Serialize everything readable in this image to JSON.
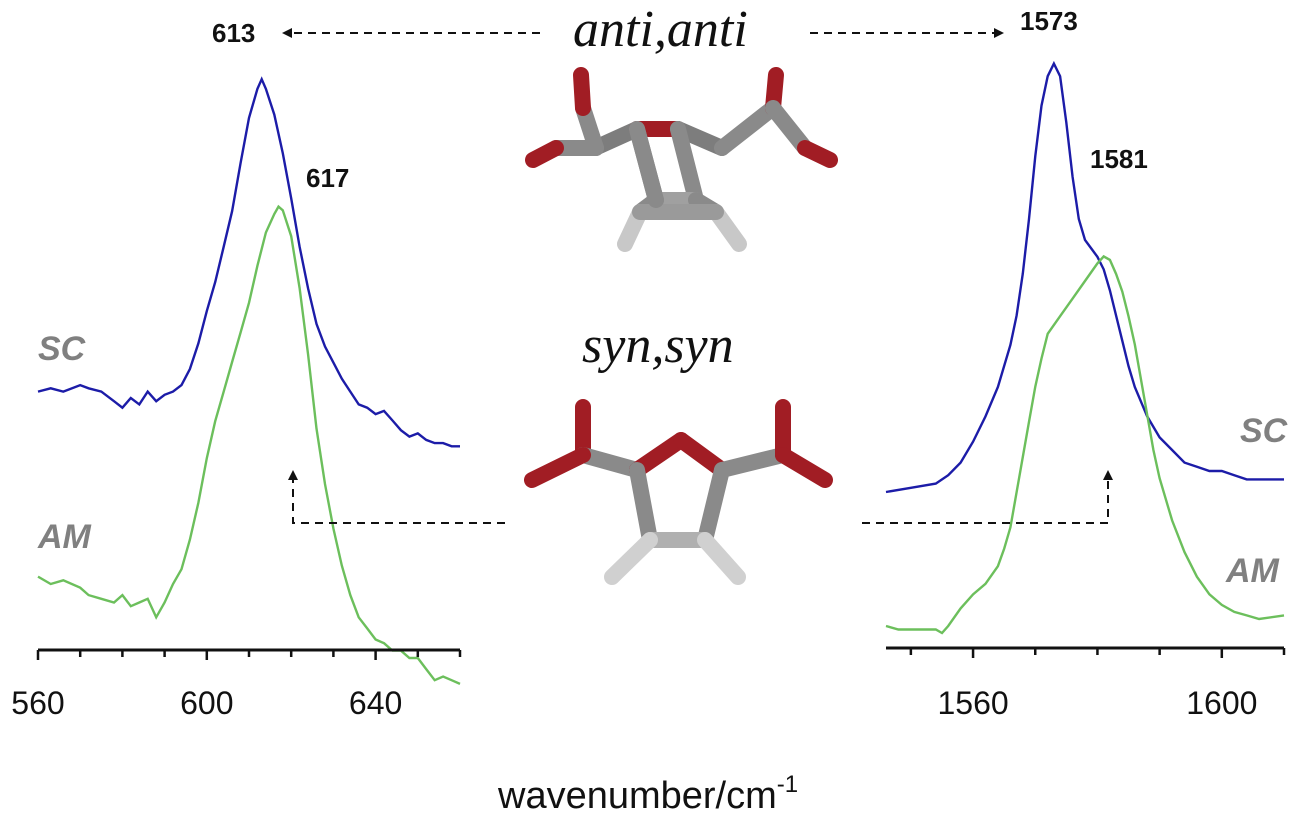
{
  "chart_data": [
    {
      "type": "line",
      "panel": "left",
      "xlim": [
        560,
        660
      ],
      "x_ticks": [
        560,
        600,
        640
      ],
      "x_tick_labels": [
        "560",
        "600",
        "640"
      ],
      "colors": {
        "SC": "#1c1ca8",
        "AM": "#6cbf5c"
      },
      "series": [
        {
          "name": "SC",
          "x": [
            560,
            563,
            566,
            570,
            572,
            575,
            578,
            580,
            582,
            584,
            586,
            588,
            590,
            592,
            594,
            596,
            598,
            599,
            600,
            602,
            604,
            606,
            608,
            610,
            612,
            613,
            614,
            616,
            618,
            620,
            622,
            624,
            626,
            628,
            630,
            632,
            634,
            636,
            638,
            640,
            642,
            644,
            646,
            648,
            650,
            652,
            654,
            656,
            658,
            660
          ],
          "y": [
            0.02,
            0.03,
            0.02,
            0.04,
            0.03,
            0.02,
            -0.01,
            -0.03,
            0.0,
            -0.02,
            0.02,
            -0.01,
            0.01,
            0.02,
            0.04,
            0.09,
            0.17,
            0.22,
            0.27,
            0.36,
            0.47,
            0.58,
            0.73,
            0.87,
            0.96,
            0.99,
            0.96,
            0.88,
            0.76,
            0.62,
            0.47,
            0.34,
            0.23,
            0.16,
            0.11,
            0.06,
            0.02,
            -0.02,
            -0.03,
            -0.05,
            -0.04,
            -0.07,
            -0.1,
            -0.12,
            -0.11,
            -0.13,
            -0.14,
            -0.14,
            -0.15,
            -0.15
          ]
        },
        {
          "name": "AM",
          "x": [
            560,
            563,
            566,
            570,
            572,
            575,
            578,
            580,
            582,
            584,
            586,
            588,
            590,
            592,
            594,
            596,
            598,
            600,
            602,
            604,
            606,
            608,
            610,
            612,
            614,
            616,
            617,
            618,
            620,
            622,
            624,
            626,
            628,
            630,
            632,
            634,
            636,
            638,
            640,
            642,
            644,
            646,
            648,
            650,
            652,
            654,
            656,
            658,
            660
          ],
          "y": [
            0.02,
            0.0,
            0.01,
            -0.01,
            -0.03,
            -0.04,
            -0.05,
            -0.03,
            -0.06,
            -0.05,
            -0.04,
            -0.09,
            -0.05,
            0.0,
            0.04,
            0.12,
            0.22,
            0.34,
            0.44,
            0.52,
            0.6,
            0.68,
            0.76,
            0.86,
            0.95,
            1.0,
            1.02,
            1.01,
            0.94,
            0.8,
            0.62,
            0.42,
            0.27,
            0.15,
            0.05,
            -0.03,
            -0.09,
            -0.12,
            -0.15,
            -0.16,
            -0.18,
            -0.18,
            -0.2,
            -0.2,
            -0.23,
            -0.26,
            -0.25,
            -0.26,
            -0.27
          ]
        }
      ],
      "annotations": [
        {
          "text": "613",
          "x": 613
        },
        {
          "text": "617",
          "x": 617
        }
      ]
    },
    {
      "type": "line",
      "panel": "right",
      "xlim": [
        1546,
        1610
      ],
      "x_ticks": [
        1560,
        1600
      ],
      "x_tick_labels": [
        "1560",
        "1600"
      ],
      "colors": {
        "SC": "#1c1ca8",
        "AM": "#6cbf5c"
      },
      "series": [
        {
          "name": "SC",
          "x": [
            1546,
            1550,
            1554,
            1556,
            1558,
            1560,
            1562,
            1564,
            1566,
            1567,
            1568,
            1569,
            1570,
            1571,
            1572,
            1573,
            1574,
            1575,
            1576,
            1577,
            1578,
            1579,
            1580,
            1581,
            1582,
            1583,
            1584,
            1585,
            1586,
            1588,
            1590,
            1592,
            1594,
            1596,
            1598,
            1600,
            1602,
            1604,
            1606,
            1610
          ],
          "y": [
            0.0,
            0.01,
            0.02,
            0.04,
            0.07,
            0.12,
            0.18,
            0.25,
            0.35,
            0.42,
            0.52,
            0.65,
            0.8,
            0.92,
            0.99,
            1.02,
            0.99,
            0.88,
            0.75,
            0.65,
            0.6,
            0.58,
            0.56,
            0.53,
            0.48,
            0.42,
            0.36,
            0.3,
            0.25,
            0.18,
            0.13,
            0.1,
            0.07,
            0.06,
            0.05,
            0.05,
            0.04,
            0.03,
            0.03,
            0.03
          ]
        },
        {
          "name": "AM",
          "x": [
            1546,
            1548,
            1550,
            1552,
            1554,
            1555,
            1556,
            1558,
            1560,
            1562,
            1564,
            1565,
            1566,
            1567,
            1568,
            1569,
            1570,
            1571,
            1572,
            1574,
            1576,
            1578,
            1580,
            1581,
            1582,
            1583,
            1584,
            1585,
            1586,
            1587,
            1588,
            1589,
            1590,
            1592,
            1594,
            1596,
            1598,
            1600,
            1602,
            1604,
            1606,
            1610
          ],
          "y": [
            0.0,
            -0.01,
            -0.01,
            -0.01,
            -0.01,
            -0.02,
            0.0,
            0.05,
            0.09,
            0.12,
            0.17,
            0.22,
            0.28,
            0.38,
            0.48,
            0.58,
            0.68,
            0.76,
            0.83,
            0.88,
            0.93,
            0.98,
            1.03,
            1.05,
            1.04,
            1.0,
            0.95,
            0.88,
            0.8,
            0.7,
            0.6,
            0.5,
            0.42,
            0.3,
            0.21,
            0.14,
            0.09,
            0.06,
            0.04,
            0.03,
            0.02,
            0.03
          ]
        }
      ],
      "annotations": [
        {
          "text": "1573",
          "x": 1573
        },
        {
          "text": "1581",
          "x": 1581
        }
      ]
    }
  ],
  "labels": {
    "sc": "SC",
    "am": "AM",
    "anti": "anti,anti",
    "syn": "syn,syn",
    "xlabel": "wavenumber/cm",
    "xlabel_sup": "-1"
  },
  "colors": {
    "axis": "#111111",
    "series_label": "#808080",
    "oxygen": "#a11d24",
    "carbon": "#8a8a8a",
    "hydrogen": "#e6e6e6"
  }
}
